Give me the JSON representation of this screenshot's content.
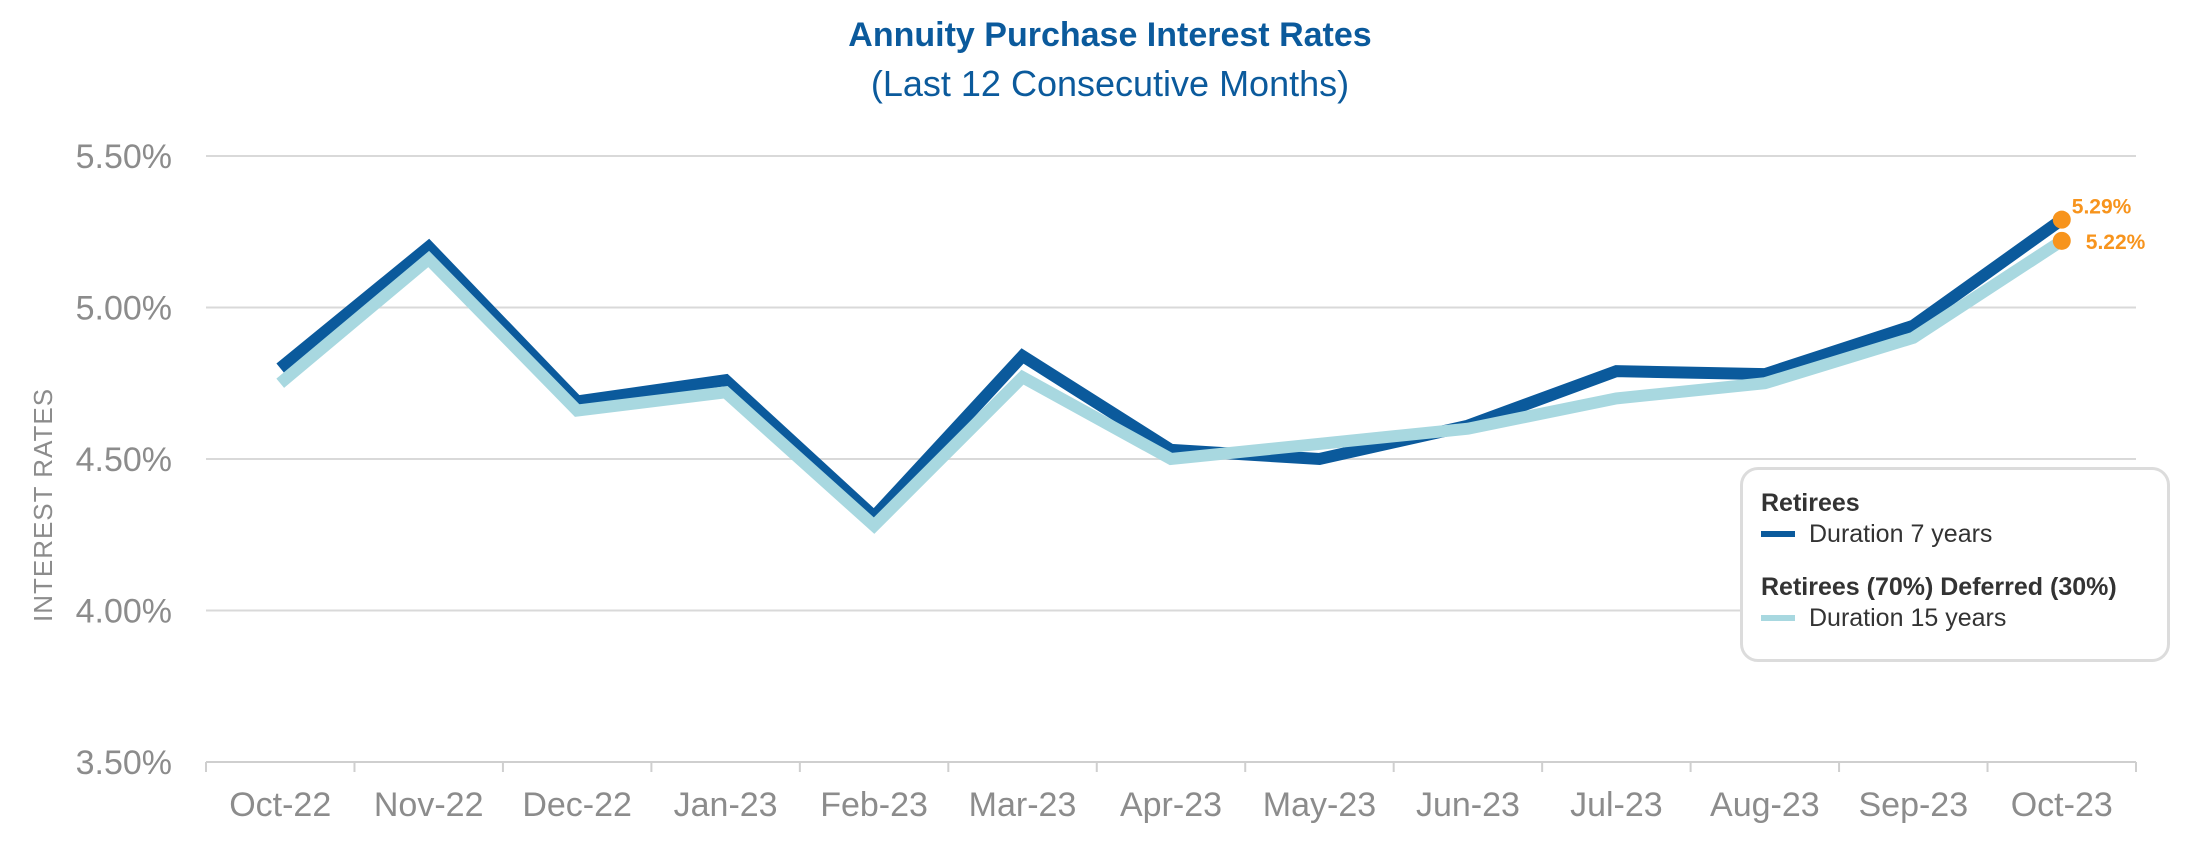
{
  "chart_data": {
    "type": "line",
    "title": "Annuity Purchase Interest Rates",
    "subtitle": "(Last 12 Consecutive Months)",
    "ylabel": "INTEREST RATES",
    "xlabel": "",
    "ylim": [
      3.5,
      5.5
    ],
    "yticks": [
      3.5,
      4.0,
      4.5,
      5.0,
      5.5
    ],
    "ytick_labels": [
      "3.50%",
      "4.00%",
      "4.50%",
      "5.00%",
      "5.50%"
    ],
    "grid": true,
    "legend_position": "bottom-right",
    "categories": [
      "Oct-22",
      "Nov-22",
      "Dec-22",
      "Jan-23",
      "Feb-23",
      "Mar-23",
      "Apr-23",
      "May-23",
      "Jun-23",
      "Jul-23",
      "Aug-23",
      "Sep-23",
      "Oct-23"
    ],
    "series": [
      {
        "name": "Duration 7 years",
        "group": "Retirees",
        "color": "#0b5a9c",
        "values": [
          4.8,
          5.2,
          4.69,
          4.76,
          4.31,
          4.84,
          4.53,
          4.5,
          4.61,
          4.79,
          4.78,
          4.94,
          5.29
        ]
      },
      {
        "name": "Duration 15 years",
        "group": "Retirees (70%) Deferred (30%)",
        "color": "#a8d8e0",
        "values": [
          4.75,
          5.16,
          4.66,
          4.72,
          4.28,
          4.77,
          4.5,
          4.55,
          4.6,
          4.7,
          4.75,
          4.9,
          5.22
        ]
      }
    ],
    "annotations": [
      {
        "series": 0,
        "index": 12,
        "text": "5.29%"
      },
      {
        "series": 1,
        "index": 12,
        "text": "5.22%"
      }
    ],
    "annotation_color": "#f7941d",
    "title_color": "#0b5a9c"
  },
  "legend": {
    "group1_title": "Retirees",
    "group1_label": "Duration 7 years",
    "group2_title": "Retirees (70%) Deferred (30%)",
    "group2_label": "Duration 15 years"
  }
}
